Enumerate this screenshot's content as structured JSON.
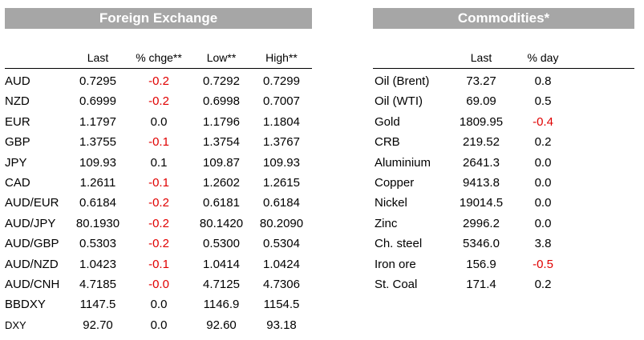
{
  "fx": {
    "title": "Foreign Exchange",
    "columns": [
      "Last",
      "% chge**",
      "Low**",
      "High**"
    ],
    "rows": [
      {
        "name": "AUD",
        "last": "0.7295",
        "chg": "-0.2",
        "low": "0.7292",
        "high": "0.7299"
      },
      {
        "name": "NZD",
        "last": "0.6999",
        "chg": "-0.2",
        "low": "0.6998",
        "high": "0.7007"
      },
      {
        "name": "EUR",
        "last": "1.1797",
        "chg": "0.0",
        "low": "1.1796",
        "high": "1.1804"
      },
      {
        "name": "GBP",
        "last": "1.3755",
        "chg": "-0.1",
        "low": "1.3754",
        "high": "1.3767"
      },
      {
        "name": "JPY",
        "last": "109.93",
        "chg": "0.1",
        "low": "109.87",
        "high": "109.93"
      },
      {
        "name": "CAD",
        "last": "1.2611",
        "chg": "-0.1",
        "low": "1.2602",
        "high": "1.2615"
      },
      {
        "name": "AUD/EUR",
        "last": "0.6184",
        "chg": "-0.2",
        "low": "0.6181",
        "high": "0.6184"
      },
      {
        "name": "AUD/JPY",
        "last": "80.1930",
        "chg": "-0.2",
        "low": "80.1420",
        "high": "80.2090"
      },
      {
        "name": "AUD/GBP",
        "last": "0.5303",
        "chg": "-0.2",
        "low": "0.5300",
        "high": "0.5304"
      },
      {
        "name": "AUD/NZD",
        "last": "1.0423",
        "chg": "-0.1",
        "low": "1.0414",
        "high": "1.0424"
      },
      {
        "name": "AUD/CNH",
        "last": "4.7185",
        "chg": "-0.0",
        "low": "4.7125",
        "high": "4.7306"
      },
      {
        "name": "BBDXY",
        "last": "1147.5",
        "chg": "0.0",
        "low": "1146.9",
        "high": "1154.5"
      },
      {
        "name": "DXY",
        "last": "92.70",
        "chg": "0.0",
        "low": "92.60",
        "high": "93.18"
      }
    ]
  },
  "commodities": {
    "title": "Commodities*",
    "columns": [
      "Last",
      "% day"
    ],
    "rows": [
      {
        "name": "Oil (Brent)",
        "last": "73.27",
        "chg": "0.8"
      },
      {
        "name": "Oil (WTI)",
        "last": "69.09",
        "chg": "0.5"
      },
      {
        "name": "Gold",
        "last": "1809.95",
        "chg": "-0.4"
      },
      {
        "name": "CRB",
        "last": "219.52",
        "chg": "0.2"
      },
      {
        "name": "Aluminium",
        "last": "2641.3",
        "chg": "0.0"
      },
      {
        "name": "Copper",
        "last": "9413.8",
        "chg": "0.0"
      },
      {
        "name": "Nickel",
        "last": "19014.5",
        "chg": "0.0"
      },
      {
        "name": "Zinc",
        "last": "2996.2",
        "chg": "0.0"
      },
      {
        "name": "Ch. steel",
        "last": "5346.0",
        "chg": "3.8"
      },
      {
        "name": "Iron ore",
        "last": "156.9",
        "chg": "-0.5"
      },
      {
        "name": "St. Coal",
        "last": "171.4",
        "chg": "0.2"
      }
    ]
  },
  "colors": {
    "header_bg": "#a6a6a6",
    "negative": "#e00000"
  }
}
